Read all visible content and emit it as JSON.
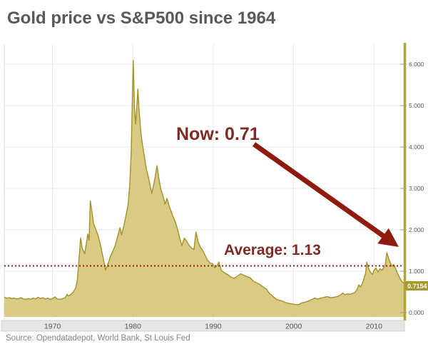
{
  "title": "Gold price vs S&P500 since 1964",
  "source": "Source: Opendatadepot, World Bank, St Louis Fed",
  "annotations": {
    "now_label": "Now: 0.71",
    "average_label": "Average: 1.13",
    "current_value_label": "0.7154"
  },
  "colors": {
    "title": "#58595b",
    "annot": "#7f2b23",
    "arrow": "#8e1b0e",
    "avg_line": "#9a1c10",
    "area_fill": "#d9cb84",
    "area_line": "#a2922a",
    "axis_gold": "#b4a436",
    "gold_box": "#a79b2e",
    "grid": "#e7e7e7",
    "tick_text": "#58595b",
    "band_bg": "#e6e6e6",
    "band_border": "#d2d2d2",
    "source_text": "#828487"
  },
  "chart_data": {
    "type": "area",
    "title": "Gold price vs S&P500 since 1964",
    "xlabel": "",
    "ylabel": "",
    "x_ticks": [
      1970,
      1980,
      1990,
      2000,
      2010
    ],
    "y_ticks": [
      "0.000",
      "1.000",
      "2.000",
      "3.000",
      "4.000",
      "5.000",
      "6.000"
    ],
    "x_range": [
      1964.0,
      2013.7
    ],
    "y_range": [
      0,
      6.48
    ],
    "grid": true,
    "average": 1.13,
    "current": 0.7154,
    "legend": "none",
    "series": [
      {
        "name": "Gold price / S&P500 ratio",
        "points": [
          [
            1964.0,
            0.37
          ],
          [
            1964.3,
            0.35
          ],
          [
            1964.6,
            0.36
          ],
          [
            1964.9,
            0.34
          ],
          [
            1965.2,
            0.35
          ],
          [
            1965.5,
            0.33
          ],
          [
            1965.8,
            0.34
          ],
          [
            1966.1,
            0.36
          ],
          [
            1966.4,
            0.33
          ],
          [
            1966.7,
            0.32
          ],
          [
            1967.0,
            0.34
          ],
          [
            1967.3,
            0.32
          ],
          [
            1967.6,
            0.35
          ],
          [
            1967.9,
            0.33
          ],
          [
            1968.2,
            0.37
          ],
          [
            1968.5,
            0.34
          ],
          [
            1968.8,
            0.36
          ],
          [
            1969.1,
            0.33
          ],
          [
            1969.4,
            0.35
          ],
          [
            1969.7,
            0.32
          ],
          [
            1970.0,
            0.34
          ],
          [
            1970.3,
            0.38
          ],
          [
            1970.6,
            0.33
          ],
          [
            1971.0,
            0.32
          ],
          [
            1971.3,
            0.34
          ],
          [
            1971.6,
            0.36
          ],
          [
            1971.8,
            0.44
          ],
          [
            1972.0,
            0.4
          ],
          [
            1972.3,
            0.44
          ],
          [
            1972.6,
            0.5
          ],
          [
            1972.9,
            0.6
          ],
          [
            1973.1,
            0.8
          ],
          [
            1973.3,
            1.3
          ],
          [
            1973.5,
            1.8
          ],
          [
            1973.7,
            1.55
          ],
          [
            1974.0,
            1.42
          ],
          [
            1974.2,
            1.65
          ],
          [
            1974.4,
            1.9
          ],
          [
            1974.55,
            1.75
          ],
          [
            1974.7,
            2.7
          ],
          [
            1974.9,
            2.45
          ],
          [
            1975.1,
            2.15
          ],
          [
            1975.4,
            2.0
          ],
          [
            1975.7,
            1.85
          ],
          [
            1976.0,
            1.6
          ],
          [
            1976.3,
            1.32
          ],
          [
            1976.6,
            1.03
          ],
          [
            1976.9,
            1.18
          ],
          [
            1977.2,
            1.35
          ],
          [
            1977.5,
            1.48
          ],
          [
            1977.8,
            1.62
          ],
          [
            1978.1,
            1.84
          ],
          [
            1978.4,
            2.05
          ],
          [
            1978.6,
            1.88
          ],
          [
            1978.9,
            2.12
          ],
          [
            1979.1,
            2.3
          ],
          [
            1979.4,
            2.6
          ],
          [
            1979.6,
            3.05
          ],
          [
            1979.8,
            3.9
          ],
          [
            1979.95,
            5.3
          ],
          [
            1980.05,
            6.1
          ],
          [
            1980.2,
            4.95
          ],
          [
            1980.35,
            4.55
          ],
          [
            1980.5,
            5.0
          ],
          [
            1980.62,
            5.4
          ],
          [
            1980.75,
            4.95
          ],
          [
            1981.0,
            4.35
          ],
          [
            1981.2,
            4.05
          ],
          [
            1981.45,
            3.75
          ],
          [
            1981.7,
            3.45
          ],
          [
            1981.9,
            3.3
          ],
          [
            1982.1,
            3.12
          ],
          [
            1982.35,
            2.88
          ],
          [
            1982.6,
            3.1
          ],
          [
            1982.8,
            3.3
          ],
          [
            1983.0,
            3.55
          ],
          [
            1983.2,
            3.28
          ],
          [
            1983.45,
            3.0
          ],
          [
            1983.7,
            2.85
          ],
          [
            1984.0,
            2.62
          ],
          [
            1984.25,
            2.76
          ],
          [
            1984.5,
            2.58
          ],
          [
            1984.75,
            2.45
          ],
          [
            1985.0,
            2.32
          ],
          [
            1985.3,
            2.18
          ],
          [
            1985.6,
            1.98
          ],
          [
            1985.85,
            1.78
          ],
          [
            1986.1,
            1.62
          ],
          [
            1986.4,
            1.8
          ],
          [
            1986.7,
            1.72
          ],
          [
            1987.0,
            1.62
          ],
          [
            1987.3,
            1.56
          ],
          [
            1987.6,
            1.52
          ],
          [
            1987.85,
            1.95
          ],
          [
            1988.1,
            1.72
          ],
          [
            1988.4,
            1.58
          ],
          [
            1988.7,
            1.5
          ],
          [
            1989.0,
            1.38
          ],
          [
            1989.3,
            1.26
          ],
          [
            1989.6,
            1.2
          ],
          [
            1989.9,
            1.18
          ],
          [
            1990.2,
            1.08
          ],
          [
            1990.5,
            1.14
          ],
          [
            1990.7,
            1.22
          ],
          [
            1991.0,
            1.02
          ],
          [
            1991.4,
            0.96
          ],
          [
            1991.8,
            0.92
          ],
          [
            1992.2,
            0.86
          ],
          [
            1992.6,
            0.83
          ],
          [
            1993.0,
            0.88
          ],
          [
            1993.4,
            0.94
          ],
          [
            1993.8,
            0.9
          ],
          [
            1994.2,
            0.87
          ],
          [
            1994.6,
            0.84
          ],
          [
            1995.0,
            0.76
          ],
          [
            1995.4,
            0.72
          ],
          [
            1995.8,
            0.68
          ],
          [
            1996.2,
            0.62
          ],
          [
            1996.6,
            0.57
          ],
          [
            1997.0,
            0.46
          ],
          [
            1997.4,
            0.4
          ],
          [
            1997.8,
            0.33
          ],
          [
            1998.2,
            0.3
          ],
          [
            1998.6,
            0.28
          ],
          [
            1999.0,
            0.24
          ],
          [
            1999.4,
            0.225
          ],
          [
            1999.8,
            0.21
          ],
          [
            2000.2,
            0.195
          ],
          [
            2000.6,
            0.19
          ],
          [
            2001.0,
            0.235
          ],
          [
            2001.4,
            0.25
          ],
          [
            2001.8,
            0.28
          ],
          [
            2002.2,
            0.31
          ],
          [
            2002.6,
            0.35
          ],
          [
            2003.0,
            0.33
          ],
          [
            2003.4,
            0.35
          ],
          [
            2003.8,
            0.37
          ],
          [
            2004.2,
            0.385
          ],
          [
            2004.6,
            0.36
          ],
          [
            2005.0,
            0.37
          ],
          [
            2005.4,
            0.385
          ],
          [
            2005.8,
            0.42
          ],
          [
            2006.1,
            0.47
          ],
          [
            2006.4,
            0.43
          ],
          [
            2006.7,
            0.455
          ],
          [
            2007.0,
            0.44
          ],
          [
            2007.3,
            0.46
          ],
          [
            2007.6,
            0.48
          ],
          [
            2007.9,
            0.56
          ],
          [
            2008.1,
            0.67
          ],
          [
            2008.3,
            0.62
          ],
          [
            2008.55,
            0.7
          ],
          [
            2008.75,
            0.82
          ],
          [
            2008.95,
            0.95
          ],
          [
            2009.1,
            1.22
          ],
          [
            2009.3,
            1.08
          ],
          [
            2009.55,
            0.98
          ],
          [
            2009.8,
            0.92
          ],
          [
            2010.0,
            1.02
          ],
          [
            2010.25,
            1.08
          ],
          [
            2010.5,
            0.98
          ],
          [
            2010.75,
            1.06
          ],
          [
            2011.0,
            1.02
          ],
          [
            2011.2,
            1.08
          ],
          [
            2011.4,
            1.16
          ],
          [
            2011.6,
            1.45
          ],
          [
            2011.8,
            1.32
          ],
          [
            2012.0,
            1.22
          ],
          [
            2012.2,
            1.12
          ],
          [
            2012.45,
            1.16
          ],
          [
            2012.7,
            1.06
          ],
          [
            2012.9,
            0.96
          ],
          [
            2013.1,
            0.88
          ],
          [
            2013.3,
            0.8
          ],
          [
            2013.5,
            0.74
          ],
          [
            2013.7,
            0.7154
          ]
        ]
      }
    ]
  }
}
